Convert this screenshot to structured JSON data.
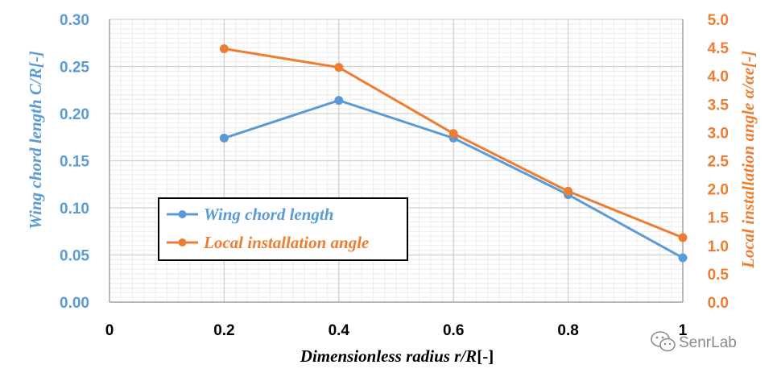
{
  "colors": {
    "series1": "#5b9bd5",
    "series2": "#ed7d31",
    "grid_major": "#d0d0d0",
    "grid_minor": "#ececec",
    "legend_border": "#000000"
  },
  "watermark": {
    "icon": "wechat-icon",
    "text": "SenrLab"
  },
  "chart_data": {
    "type": "line",
    "xlabel": {
      "main": "Dimensionless radius r/R",
      "suffix": "[-]"
    },
    "ylabel": "Wing chord length C/R[-]",
    "y2label": "Local installation angle α/αe[-]",
    "xlim": [
      0,
      1
    ],
    "ylim": [
      0,
      0.3
    ],
    "y2lim": [
      0,
      5.0
    ],
    "x_ticks": [
      "0",
      "0.2",
      "0.4",
      "0.6",
      "0.8",
      "1"
    ],
    "x_tick_values": [
      0,
      0.2,
      0.4,
      0.6,
      0.8,
      1
    ],
    "y_ticks": [
      "0.00",
      "0.05",
      "0.10",
      "0.15",
      "0.20",
      "0.25",
      "0.30"
    ],
    "y_tick_values": [
      0,
      0.05,
      0.1,
      0.15,
      0.2,
      0.25,
      0.3
    ],
    "y2_ticks": [
      "0.0",
      "0.5",
      "1.0",
      "1.5",
      "2.0",
      "2.5",
      "3.0",
      "3.5",
      "4.0",
      "4.5",
      "5.0"
    ],
    "y2_tick_values": [
      0,
      0.5,
      1.0,
      1.5,
      2.0,
      2.5,
      3.0,
      3.5,
      4.0,
      4.5,
      5.0
    ],
    "grid": true,
    "legend_position": "left-center",
    "series": [
      {
        "name": "Wing chord length",
        "axis": "left",
        "x": [
          0.2,
          0.4,
          0.6,
          0.8,
          1.0
        ],
        "values": [
          0.174,
          0.214,
          0.174,
          0.114,
          0.047
        ]
      },
      {
        "name": "Local installation angle",
        "axis": "right",
        "x": [
          0.2,
          0.4,
          0.6,
          0.8,
          1.0
        ],
        "values": [
          4.48,
          4.15,
          2.98,
          1.96,
          1.14
        ]
      }
    ]
  }
}
